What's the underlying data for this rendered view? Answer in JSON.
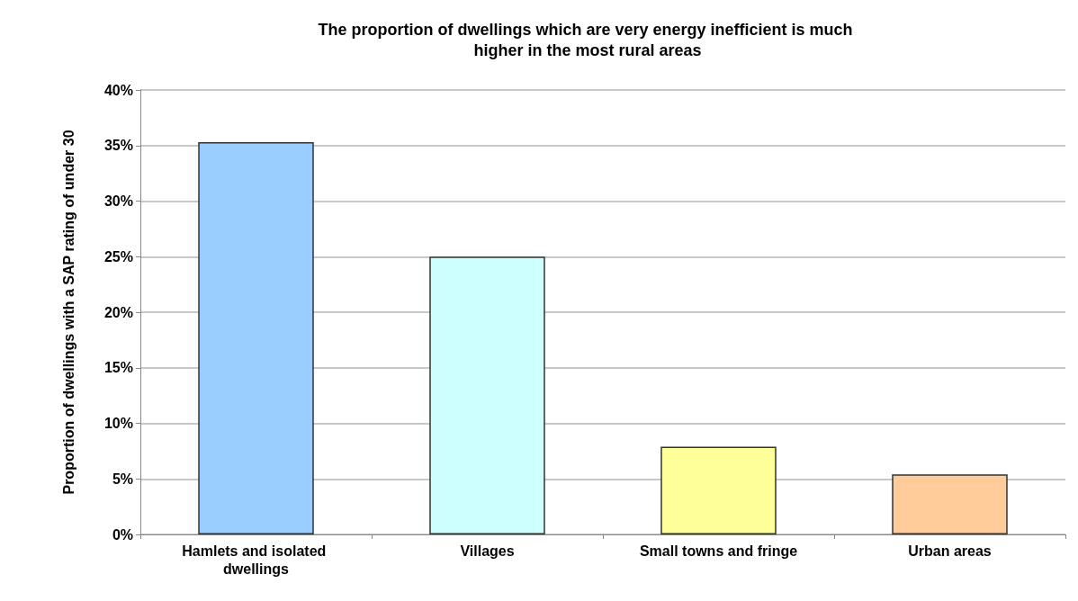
{
  "chart_data": {
    "type": "bar",
    "title": "The proportion of dwellings which are very energy inefficient is much higher in the most rural areas",
    "ylabel": "Proportion of dwellings with a SAP rating of under 30",
    "categories": [
      "Hamlets and isolated dwellings",
      "Villages",
      "Small towns and fringe",
      "Urban areas"
    ],
    "values": [
      35.3,
      25.0,
      7.9,
      5.4
    ],
    "colors": [
      "#99ccff",
      "#ccffff",
      "#ffff99",
      "#ffcc99"
    ],
    "ylim": [
      0,
      40
    ],
    "yticks": [
      {
        "value": 0,
        "label": "0%"
      },
      {
        "value": 5,
        "label": "5%"
      },
      {
        "value": 10,
        "label": "10%"
      },
      {
        "value": 15,
        "label": "15%"
      },
      {
        "value": 20,
        "label": "20%"
      },
      {
        "value": 25,
        "label": "25%"
      },
      {
        "value": 30,
        "label": "30%"
      },
      {
        "value": 35,
        "label": "35%"
      },
      {
        "value": 40,
        "label": "40%"
      }
    ],
    "grid": "y"
  }
}
